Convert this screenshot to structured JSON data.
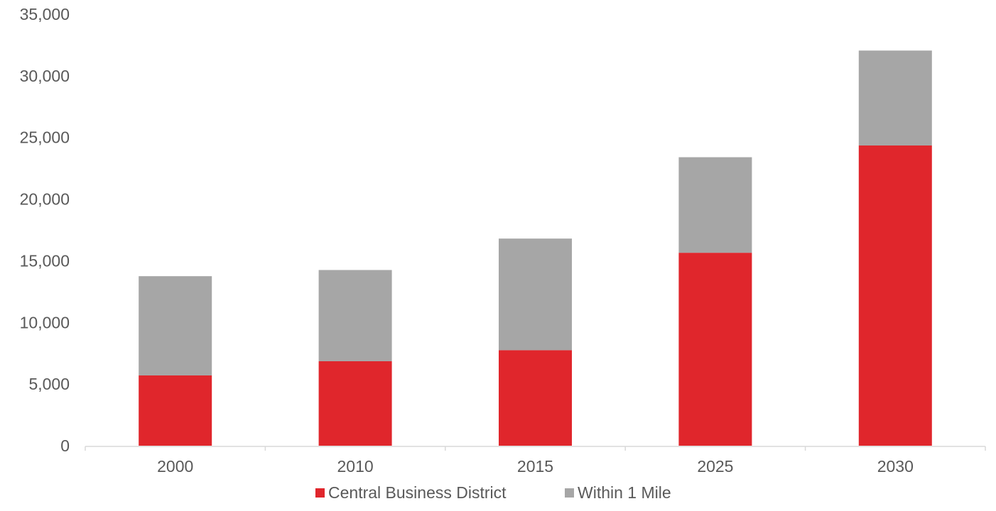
{
  "chart_data": {
    "type": "bar",
    "stacked": true,
    "categories": [
      "2000",
      "2010",
      "2015",
      "2025",
      "2030"
    ],
    "series": [
      {
        "name": "Central Business District",
        "color": "#e0262c",
        "values": [
          5700,
          6850,
          7750,
          15650,
          24350
        ]
      },
      {
        "name": "Within 1 Mile",
        "color": "#a6a6a6",
        "values": [
          8050,
          7400,
          9050,
          7750,
          7700
        ]
      }
    ],
    "ylim": [
      0,
      35000
    ],
    "yticks": [
      0,
      5000,
      10000,
      15000,
      20000,
      25000,
      30000,
      35000
    ],
    "ytick_labels": [
      "0",
      "5,000",
      "10,000",
      "15,000",
      "20,000",
      "25,000",
      "30,000",
      "35,000"
    ],
    "grid": false,
    "legend_position": "bottom-center",
    "title": "",
    "xlabel": "",
    "ylabel": ""
  }
}
